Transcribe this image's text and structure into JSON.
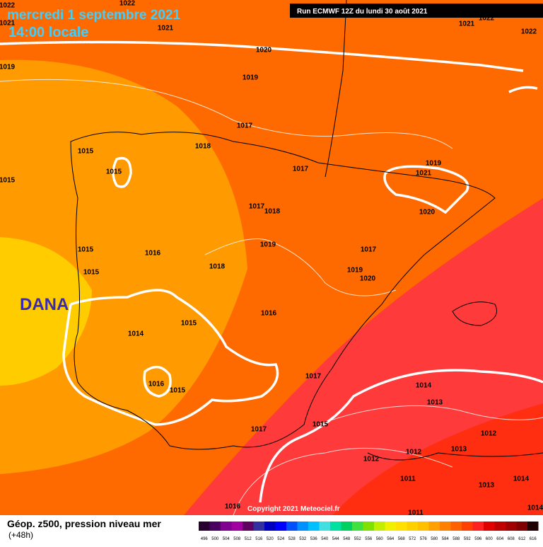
{
  "header": {
    "title": "mercredi 1 septembre 2021",
    "subtitle": "14:00 locale",
    "run": "Run ECMWF 12Z du lundi 30 août 2021"
  },
  "annotation": "DANA",
  "copyright": "Copyright 2021 Meteociel.fr",
  "isobars": {
    "labels": [
      "1022",
      "1022",
      "1021",
      "1021",
      "1020",
      "1019",
      "1019",
      "1021",
      "1022",
      "1022",
      "1017",
      "1018",
      "1015",
      "1015",
      "1015",
      "1017",
      "1019",
      "1021",
      "1017",
      "1018",
      "1020",
      "1015",
      "1016",
      "1019",
      "1017",
      "1015",
      "1018",
      "1019",
      "1020",
      "1016",
      "1015",
      "1014",
      "1017",
      "1016",
      "1015",
      "1014",
      "1013",
      "1017",
      "1015",
      "1012",
      "1012",
      "1013",
      "1012",
      "1011",
      "1013",
      "1014",
      "1016",
      "1011",
      "1014"
    ]
  },
  "legend": {
    "title": "Géop. z500, pression niveau mer",
    "subtitle": "(+48h)",
    "labels": [
      "496",
      "500",
      "504",
      "508",
      "512",
      "516",
      "520",
      "524",
      "528",
      "532",
      "536",
      "540",
      "544",
      "548",
      "552",
      "556",
      "560",
      "564",
      "568",
      "572",
      "576",
      "580",
      "584",
      "588",
      "592",
      "596",
      "600",
      "604",
      "608",
      "612",
      "616"
    ],
    "colors": [
      "#2a0030",
      "#4a0060",
      "#800090",
      "#a000a0",
      "#600060",
      "#3030a0",
      "#0000c0",
      "#0000ff",
      "#0050ff",
      "#0090ff",
      "#00c0ff",
      "#40e0e0",
      "#00e0a0",
      "#00d060",
      "#40e040",
      "#80e000",
      "#c0f000",
      "#f0f000",
      "#ffe000",
      "#ffd000",
      "#ffc000",
      "#ffa000",
      "#ff8000",
      "#ff6000",
      "#ff4000",
      "#ff2020",
      "#e00000",
      "#c00000",
      "#a00000",
      "#800000",
      "#200000"
    ]
  }
}
